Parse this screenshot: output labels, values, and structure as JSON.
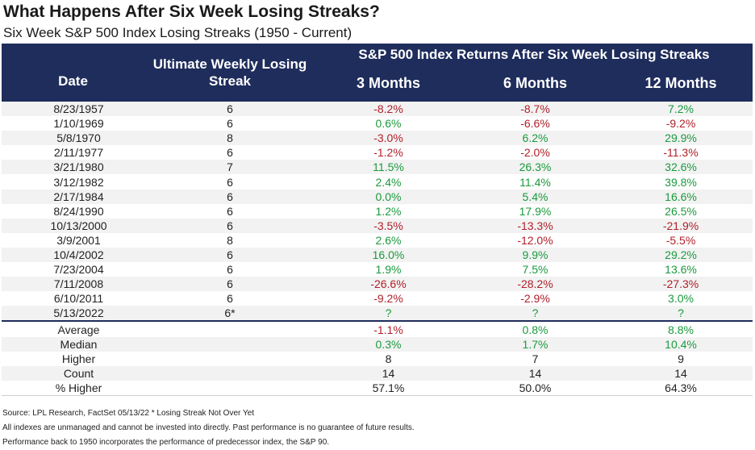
{
  "title": "What Happens After Six Week Losing Streaks?",
  "subtitle": "Six Week S&P 500 Index Losing Streaks (1950 - Current)",
  "header": {
    "date": "Date",
    "streak": "Ultimate Weekly Losing Streak",
    "group": "S&P 500 Index Returns After Six Week Losing Streaks",
    "m3": "3 Months",
    "m6": "6 Months",
    "m12": "12 Months"
  },
  "rows": [
    {
      "date": "8/23/1957",
      "streak": "6",
      "m3": "-8.2%",
      "m6": "-8.7%",
      "m12": "7.2%"
    },
    {
      "date": "1/10/1969",
      "streak": "6",
      "m3": "0.6%",
      "m6": "-6.6%",
      "m12": "-9.2%"
    },
    {
      "date": "5/8/1970",
      "streak": "8",
      "m3": "-3.0%",
      "m6": "6.2%",
      "m12": "29.9%"
    },
    {
      "date": "2/11/1977",
      "streak": "6",
      "m3": "-1.2%",
      "m6": "-2.0%",
      "m12": "-11.3%"
    },
    {
      "date": "3/21/1980",
      "streak": "7",
      "m3": "11.5%",
      "m6": "26.3%",
      "m12": "32.6%"
    },
    {
      "date": "3/12/1982",
      "streak": "6",
      "m3": "2.4%",
      "m6": "11.4%",
      "m12": "39.8%"
    },
    {
      "date": "2/17/1984",
      "streak": "6",
      "m3": "0.0%",
      "m6": "5.4%",
      "m12": "16.6%"
    },
    {
      "date": "8/24/1990",
      "streak": "6",
      "m3": "1.2%",
      "m6": "17.9%",
      "m12": "26.5%"
    },
    {
      "date": "10/13/2000",
      "streak": "6",
      "m3": "-3.5%",
      "m6": "-13.3%",
      "m12": "-21.9%"
    },
    {
      "date": "3/9/2001",
      "streak": "8",
      "m3": "2.6%",
      "m6": "-12.0%",
      "m12": "-5.5%"
    },
    {
      "date": "10/4/2002",
      "streak": "6",
      "m3": "16.0%",
      "m6": "9.9%",
      "m12": "29.2%"
    },
    {
      "date": "7/23/2004",
      "streak": "6",
      "m3": "1.9%",
      "m6": "7.5%",
      "m12": "13.6%"
    },
    {
      "date": "7/11/2008",
      "streak": "6",
      "m3": "-26.6%",
      "m6": "-28.2%",
      "m12": "-27.3%"
    },
    {
      "date": "6/10/2011",
      "streak": "6",
      "m3": "-9.2%",
      "m6": "-2.9%",
      "m12": "3.0%"
    },
    {
      "date": "5/13/2022",
      "streak": "6*",
      "m3": "?",
      "m6": "?",
      "m12": "?"
    }
  ],
  "summary": [
    {
      "label": "Average",
      "m3": "-1.1%",
      "m6": "0.8%",
      "m12": "8.8%"
    },
    {
      "label": "Median",
      "m3": "0.3%",
      "m6": "1.7%",
      "m12": "10.4%"
    },
    {
      "label": "Higher",
      "m3": "8",
      "m6": "7",
      "m12": "9"
    },
    {
      "label": "Count",
      "m3": "14",
      "m6": "14",
      "m12": "14"
    },
    {
      "label": "% Higher",
      "m3": "57.1%",
      "m6": "50.0%",
      "m12": "64.3%"
    }
  ],
  "notes": [
    "Source: LPL Research, FactSet 05/13/22 * Losing Streak Not Over Yet",
    "All indexes are unmanaged and cannot be invested into directly. Past performance is no guarantee of future results.",
    "Performance back to 1950 incorporates the performance of predecessor index, the S&P 90."
  ],
  "colors": {
    "header_bg": "#1f2d5c",
    "positive": "#1a9a3c",
    "negative": "#b0202a",
    "stripe": "#f2f2f2"
  }
}
